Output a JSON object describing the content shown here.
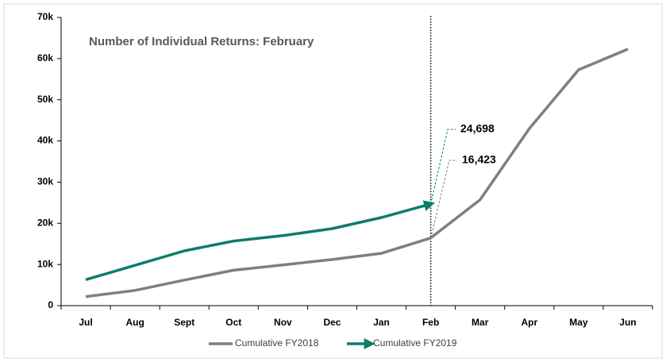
{
  "chart_data": {
    "type": "line",
    "title": "Number of Individual Returns: February",
    "categories": [
      "Jul",
      "Aug",
      "Sept",
      "Oct",
      "Nov",
      "Dec",
      "Jan",
      "Feb",
      "Mar",
      "Apr",
      "May",
      "Jun"
    ],
    "series": [
      {
        "name": "Cumulative  FY2018",
        "color": "#7f7f7f",
        "values": [
          2200,
          3700,
          6200,
          8600,
          9900,
          11200,
          12700,
          16423,
          25700,
          43000,
          57300,
          62300
        ],
        "value_labels": [
          null,
          null,
          null,
          null,
          null,
          null,
          null,
          "16,423",
          null,
          null,
          null,
          null
        ]
      },
      {
        "name": "Cumulative  FY2019",
        "color": "#0e7c6b",
        "marker": "arrow",
        "values": [
          6300,
          9800,
          13300,
          15700,
          17000,
          18700,
          21400,
          24698,
          null,
          null,
          null,
          null
        ],
        "value_labels": [
          null,
          null,
          null,
          null,
          null,
          null,
          null,
          "24,698",
          null,
          null,
          null,
          null
        ]
      }
    ],
    "ylim": [
      0,
      70000
    ],
    "yticks": [
      0,
      {
        "value": 10000,
        "label": "10k"
      },
      {
        "value": 20000,
        "label": "20k"
      },
      {
        "value": 30000,
        "label": "30k"
      },
      {
        "value": 40000,
        "label": "40k"
      },
      {
        "value": 50000,
        "label": "50k"
      },
      {
        "value": 60000,
        "label": "60k"
      },
      {
        "value": 70000,
        "label": "70k"
      }
    ],
    "legend": "bottom"
  }
}
